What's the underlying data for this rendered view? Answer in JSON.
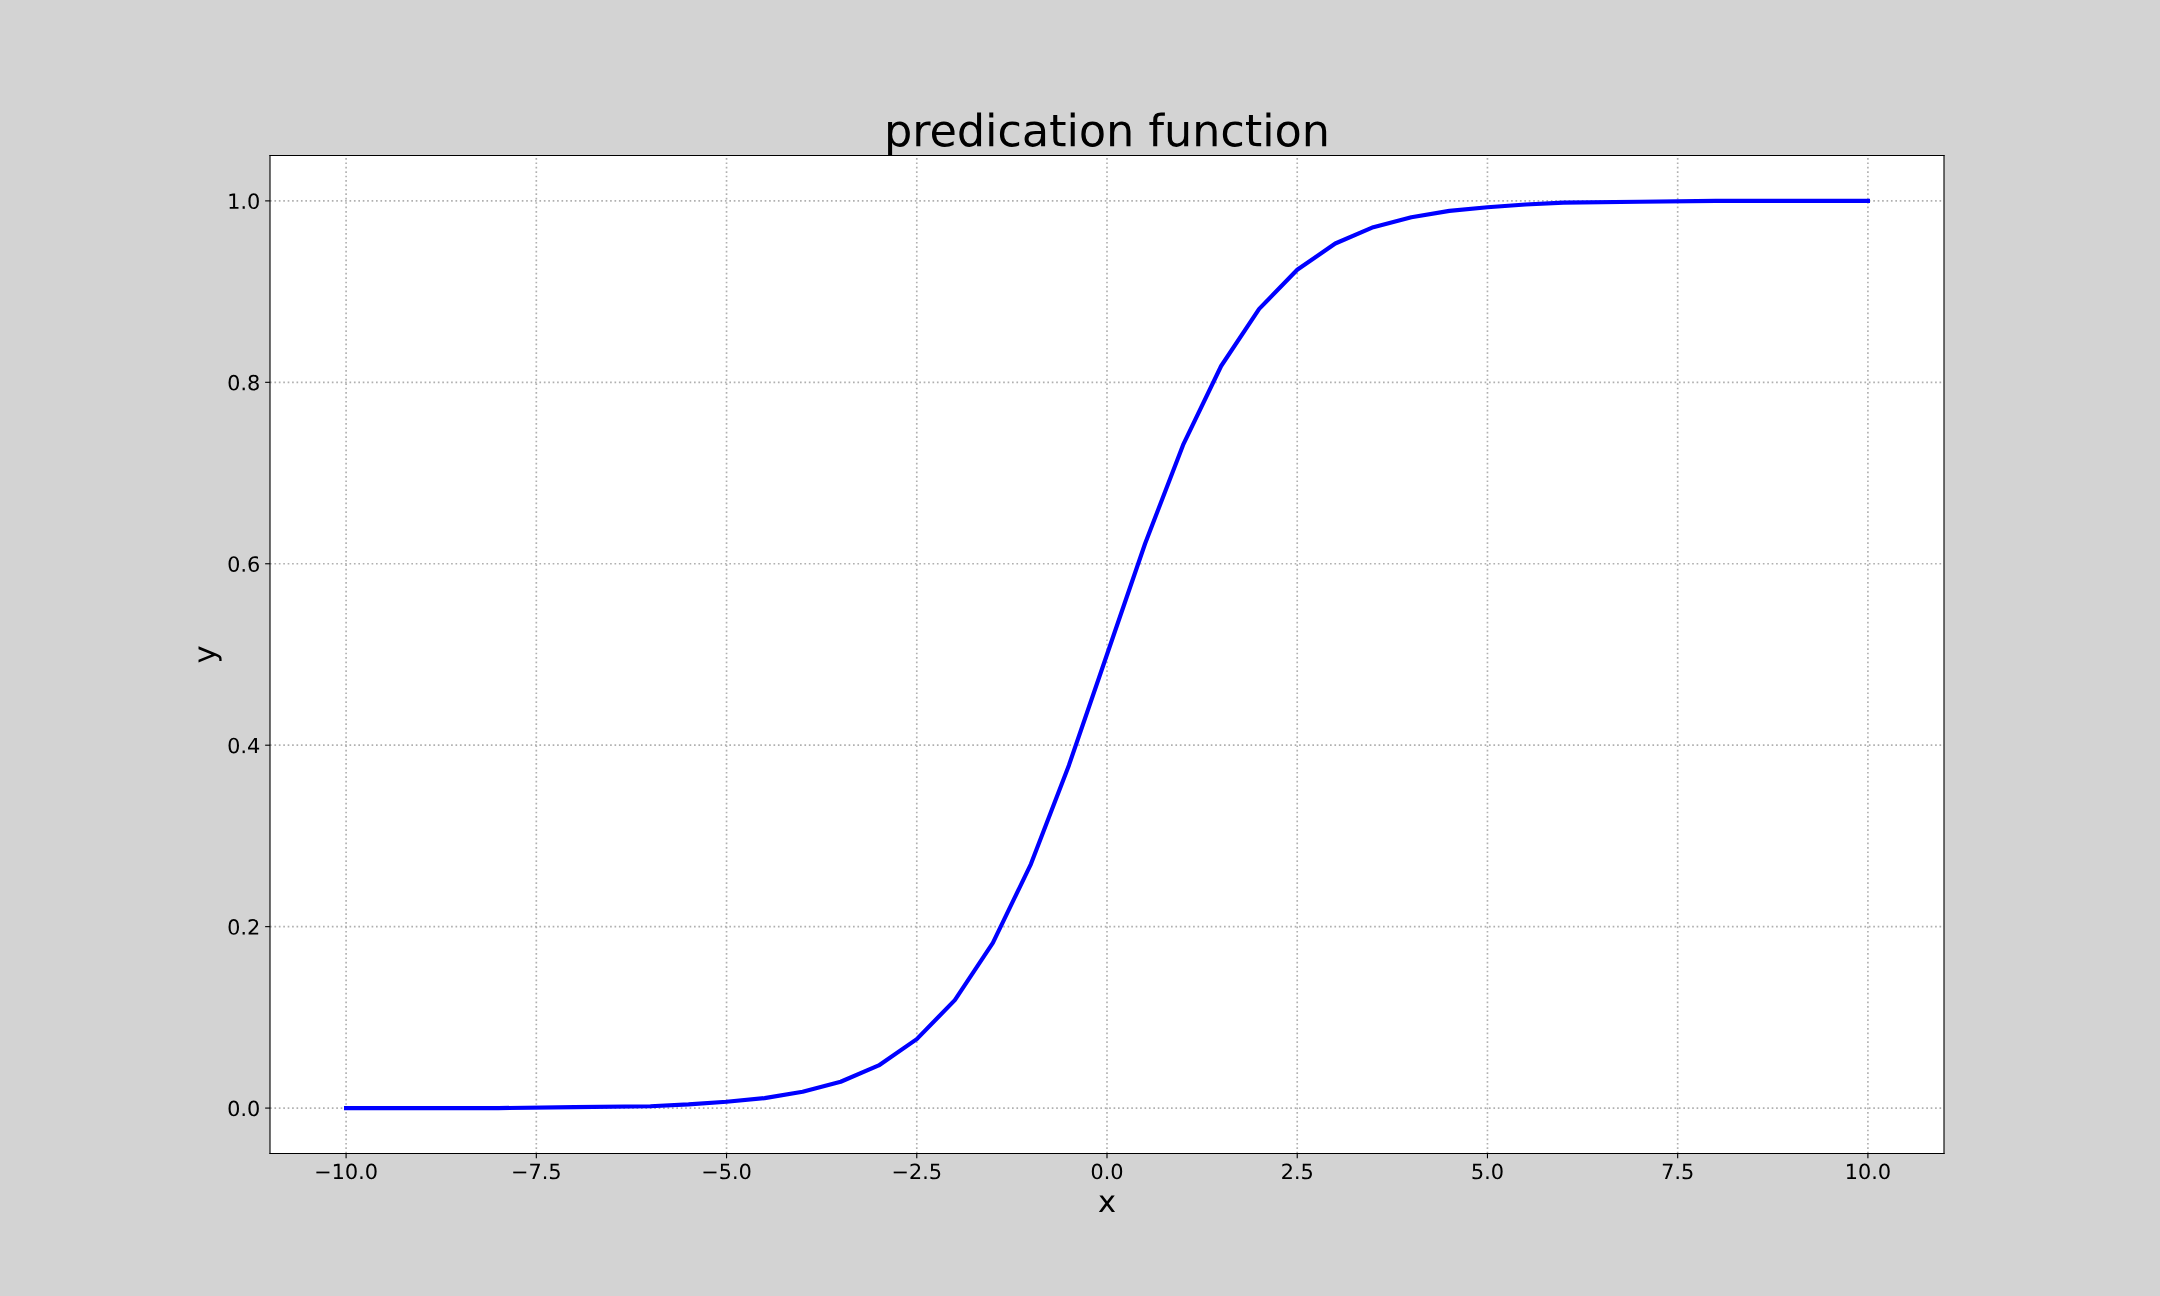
{
  "chart_data": {
    "type": "line",
    "title": "predication function",
    "xlabel": "x",
    "ylabel": "y",
    "x": [
      -10,
      -9,
      -8,
      -7,
      -6,
      -5.5,
      -5,
      -4.5,
      -4,
      -3.5,
      -3,
      -2.5,
      -2,
      -1.5,
      -1,
      -0.5,
      0,
      0.5,
      1,
      1.5,
      2,
      2.5,
      3,
      3.5,
      4,
      4.5,
      5,
      5.5,
      6,
      7,
      8,
      9,
      10
    ],
    "series": [
      {
        "color": "#0000ff",
        "values": [
          0.0,
          0.0,
          0.0,
          0.001,
          0.002,
          0.004,
          0.007,
          0.011,
          0.018,
          0.029,
          0.047,
          0.076,
          0.119,
          0.182,
          0.269,
          0.378,
          0.5,
          0.622,
          0.731,
          0.818,
          0.881,
          0.924,
          0.953,
          0.971,
          0.982,
          0.989,
          0.993,
          0.996,
          0.998,
          0.999,
          1.0,
          1.0,
          1.0
        ]
      }
    ],
    "xlim": [
      -11,
      11
    ],
    "ylim": [
      -0.05,
      1.05
    ],
    "xticks": [
      {
        "value": -10,
        "label": "−10.0"
      },
      {
        "value": -7.5,
        "label": "−7.5"
      },
      {
        "value": -5,
        "label": "−5.0"
      },
      {
        "value": -2.5,
        "label": "−2.5"
      },
      {
        "value": 0,
        "label": "0.0"
      },
      {
        "value": 2.5,
        "label": "2.5"
      },
      {
        "value": 5,
        "label": "5.0"
      },
      {
        "value": 7.5,
        "label": "7.5"
      },
      {
        "value": 10,
        "label": "10.0"
      }
    ],
    "yticks": [
      {
        "value": 0,
        "label": "0.0"
      },
      {
        "value": 0.2,
        "label": "0.2"
      },
      {
        "value": 0.4,
        "label": "0.4"
      },
      {
        "value": 0.6,
        "label": "0.6"
      },
      {
        "value": 0.8,
        "label": "0.8"
      },
      {
        "value": 1,
        "label": "1.0"
      }
    ],
    "grid": true,
    "line_style": "solid",
    "marker": "none"
  }
}
